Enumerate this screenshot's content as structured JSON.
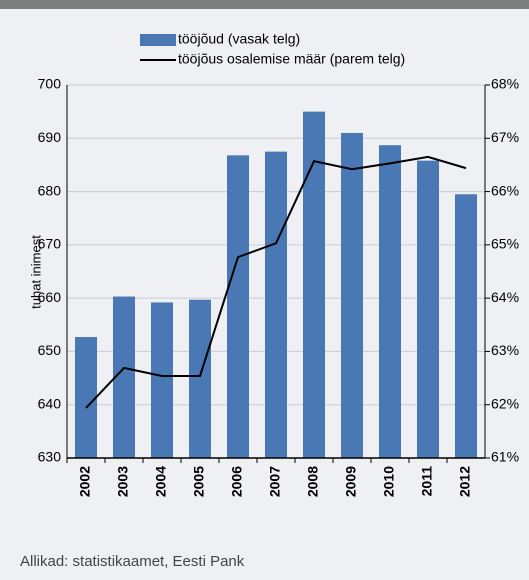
{
  "chart_data": {
    "type": "bar_line",
    "categories": [
      "2002",
      "2003",
      "2004",
      "2005",
      "2006",
      "2007",
      "2008",
      "2009",
      "2010",
      "2011",
      "2012"
    ],
    "series": [
      {
        "name": "tööjõud (vasak telg)",
        "type": "bar",
        "color": "#4a78b5",
        "values": [
          652.7,
          660.3,
          659.2,
          659.7,
          686.8,
          687.5,
          695,
          691,
          688.7,
          685.8,
          679.5
        ]
      },
      {
        "name": "tööjõus osalemise määr (parem telg)",
        "type": "line",
        "axis": "y2",
        "color": "#000000",
        "values": [
          61.94,
          62.69,
          62.54,
          62.54,
          64.77,
          65.03,
          66.57,
          66.42,
          66.53,
          66.65,
          66.44
        ]
      }
    ],
    "ylabel": "tuhat inimest",
    "ylim": [
      630,
      700
    ],
    "yticks": [
      630,
      640,
      650,
      660,
      670,
      680,
      690,
      700
    ],
    "y2lim": [
      61,
      68
    ],
    "y2ticks": [
      {
        "value": 61,
        "label": "61%"
      },
      {
        "value": 62,
        "label": "62%"
      },
      {
        "value": 63,
        "label": "63%"
      },
      {
        "value": 64,
        "label": "64%"
      },
      {
        "value": 65,
        "label": "65%"
      },
      {
        "value": 66,
        "label": "66%"
      },
      {
        "value": 67,
        "label": "67%"
      },
      {
        "value": 68,
        "label": "68%"
      }
    ],
    "grid": true,
    "source": "Allikad: statistikaamet, Eesti Pank"
  }
}
